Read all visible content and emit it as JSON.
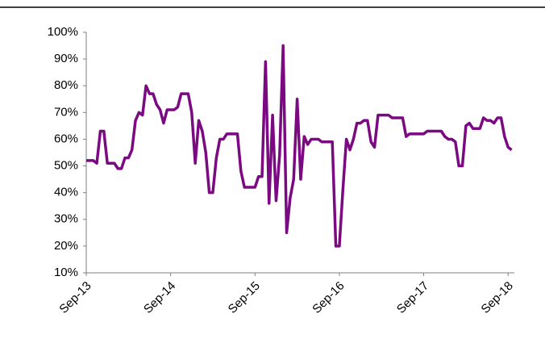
{
  "chart_data": {
    "type": "line",
    "categories": [
      "Sep-13",
      null,
      null,
      null,
      null,
      null,
      null,
      null,
      null,
      null,
      null,
      null,
      null,
      null,
      null,
      null,
      null,
      null,
      null,
      null,
      null,
      null,
      null,
      null,
      "Sep-14",
      null,
      null,
      null,
      null,
      null,
      null,
      null,
      null,
      null,
      null,
      null,
      null,
      null,
      null,
      null,
      null,
      null,
      null,
      null,
      null,
      null,
      null,
      null,
      "Sep-15",
      null,
      null,
      null,
      null,
      null,
      null,
      null,
      null,
      null,
      null,
      null,
      null,
      null,
      null,
      null,
      null,
      null,
      null,
      null,
      null,
      null,
      null,
      null,
      "Sep-16",
      null,
      null,
      null,
      null,
      null,
      null,
      null,
      null,
      null,
      null,
      null,
      null,
      null,
      null,
      null,
      null,
      null,
      null,
      null,
      null,
      null,
      null,
      null,
      "Sep-17",
      null,
      null,
      null,
      null,
      null,
      null,
      null,
      null,
      null,
      null,
      null,
      null,
      null,
      null,
      null,
      null,
      null,
      null,
      null,
      null,
      null,
      null,
      null,
      "Sep-18",
      null
    ],
    "values": [
      52,
      52,
      52,
      51,
      63,
      63,
      51,
      51,
      51,
      49,
      49,
      53,
      53,
      56,
      67,
      70,
      69,
      80,
      77,
      77,
      73,
      71,
      66,
      71,
      71,
      71,
      72,
      77,
      77,
      77,
      70,
      51,
      67,
      63,
      55,
      40,
      40,
      53,
      60,
      60,
      62,
      62,
      62,
      62,
      48,
      42,
      42,
      42,
      42,
      46,
      46,
      89,
      36,
      69,
      37,
      54,
      95,
      25,
      38,
      45,
      75,
      45,
      61,
      58,
      60,
      60,
      60,
      59,
      59,
      59,
      59,
      20,
      20,
      41,
      60,
      56,
      60,
      66,
      66,
      67,
      67,
      59,
      57,
      69,
      69,
      69,
      69,
      68,
      68,
      68,
      68,
      61,
      62,
      62,
      62,
      62,
      62,
      63,
      63,
      63,
      63,
      63,
      61,
      60,
      60,
      59,
      50,
      50,
      65,
      66,
      64,
      64,
      64,
      68,
      67,
      67,
      66,
      68,
      68,
      61,
      57,
      56
    ],
    "color": "#7b0a82",
    "ylim": [
      10,
      100
    ],
    "yticks": [
      {
        "value": 10,
        "label": "10%"
      },
      {
        "value": 20,
        "label": "20%"
      },
      {
        "value": 30,
        "label": "30%"
      },
      {
        "value": 40,
        "label": "40%"
      },
      {
        "value": 50,
        "label": "50%"
      },
      {
        "value": 60,
        "label": "60%"
      },
      {
        "value": 70,
        "label": "70%"
      },
      {
        "value": 80,
        "label": "80%"
      },
      {
        "value": 90,
        "label": "90%"
      },
      {
        "value": 100,
        "label": "100%"
      }
    ],
    "grid": false
  }
}
